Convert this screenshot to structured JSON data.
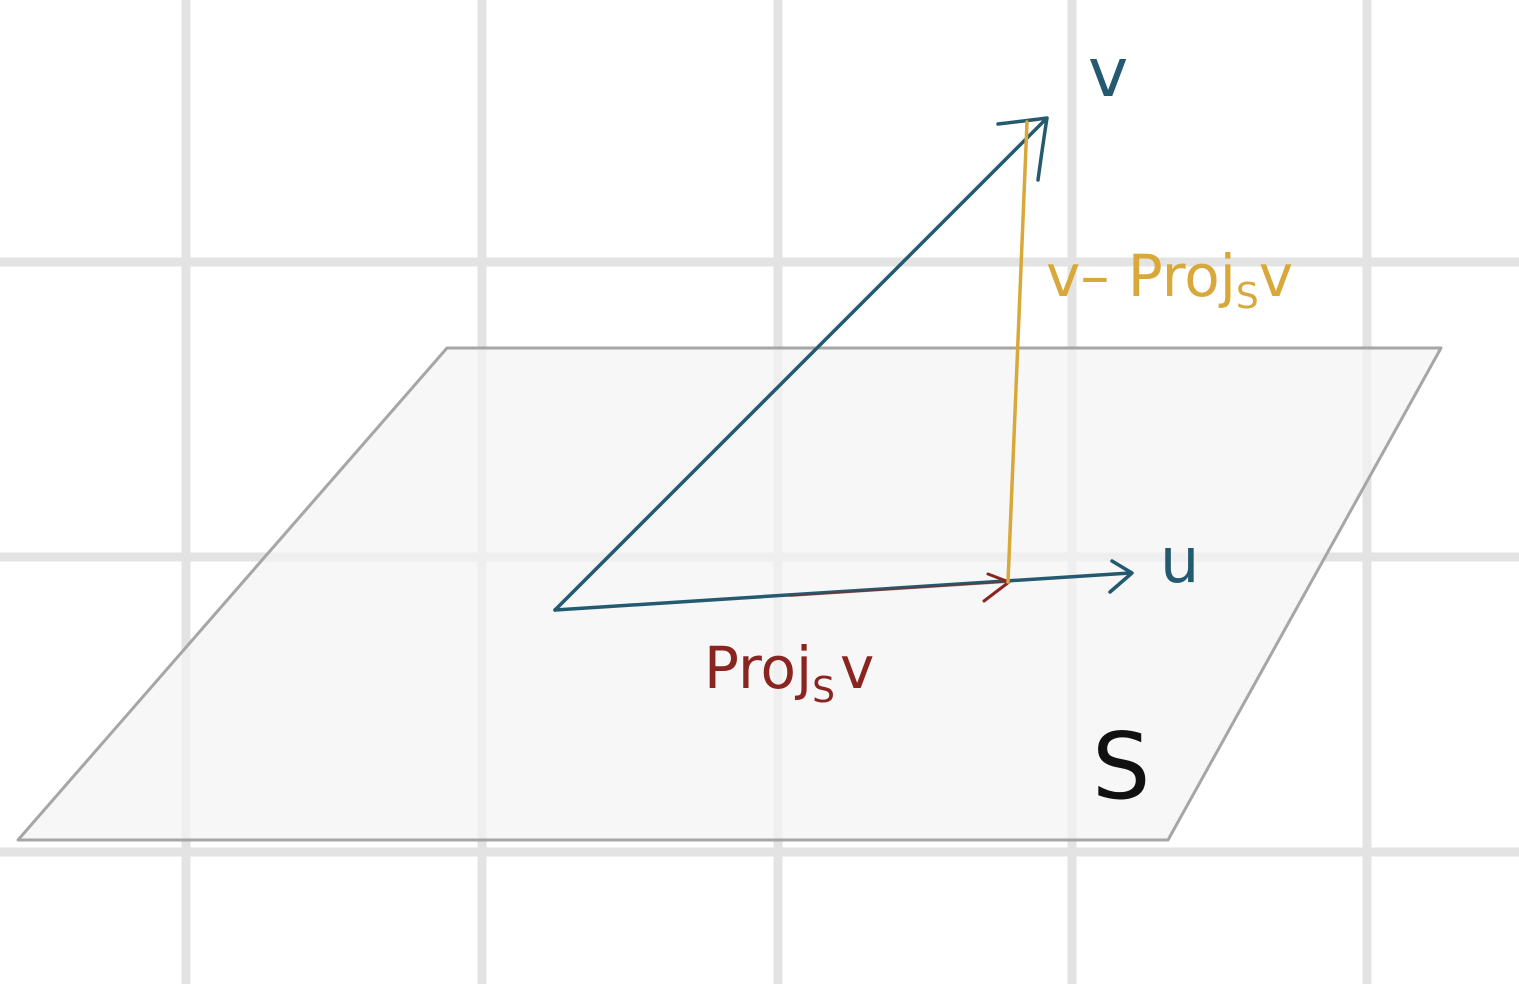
{
  "labels": {
    "v": "v",
    "u": "u",
    "residual_prefix": "v– Proj",
    "residual_sub": "S",
    "residual_suffix": "v",
    "proj_prefix": "Proj",
    "proj_sub": "S",
    "proj_suffix": "v",
    "plane": "S"
  },
  "colors": {
    "grid": "#e3e3e3",
    "plane_fill": "#f4f4f4",
    "plane_edge": "#a6a6a6",
    "vector": "#235a6f",
    "residual": "#d9a83a",
    "projection": "#8a2420",
    "plane_label": "#111111",
    "background": "#ffffff"
  }
}
